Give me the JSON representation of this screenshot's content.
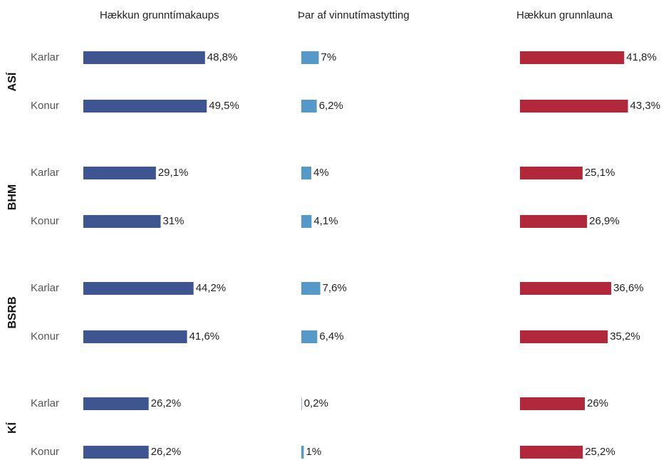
{
  "chart_data": {
    "type": "bar",
    "orientation": "horizontal",
    "groups": [
      "ASÍ",
      "BHM",
      "BSRB",
      "KÍ"
    ],
    "categories": [
      "Karlar",
      "Konur",
      "Karlar",
      "Konur",
      "Karlar",
      "Konur",
      "Karlar",
      "Konur"
    ],
    "series": [
      {
        "name": "Hækkun grunntímakaups",
        "color": "#3f5592",
        "values": [
          48.8,
          49.5,
          29.1,
          31,
          44.2,
          41.6,
          26.2,
          26.2
        ],
        "value_labels": [
          "48,8%",
          "49,5%",
          "29,1%",
          "31%",
          "44,2%",
          "41,6%",
          "26,2%",
          "26,2%"
        ]
      },
      {
        "name": "Þar af vinnutímastytting",
        "color": "#5599c8",
        "values": [
          7,
          6.2,
          4,
          4.1,
          7.6,
          6.4,
          0.2,
          1
        ],
        "value_labels": [
          "7%",
          "6,2%",
          "4%",
          "4,1%",
          "7,6%",
          "6,4%",
          "0,2%",
          "1%"
        ]
      },
      {
        "name": "Hækkun grunnlauna",
        "color": "#b0283a",
        "values": [
          41.8,
          43.3,
          25.1,
          26.9,
          36.6,
          35.2,
          26,
          25.2
        ],
        "value_labels": [
          "41,8%",
          "43,3%",
          "25,1%",
          "26,9%",
          "36,6%",
          "35,2%",
          "26%",
          "25,2%"
        ]
      }
    ]
  }
}
